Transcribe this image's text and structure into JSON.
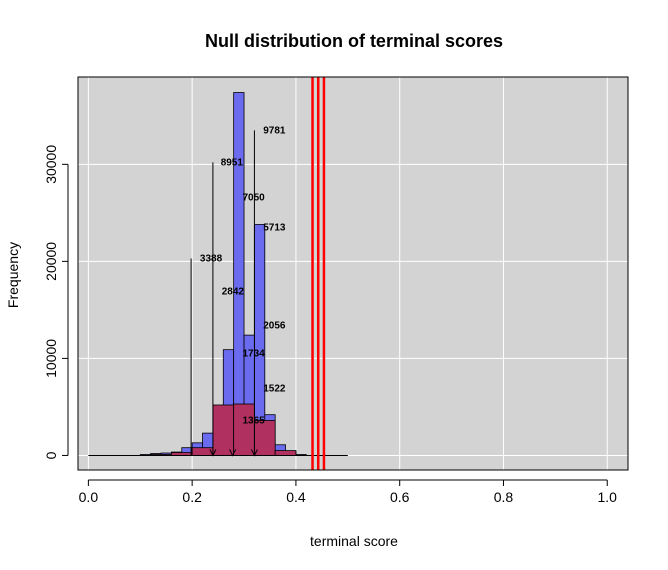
{
  "chart_data": {
    "type": "histogram",
    "title": "Null distribution of terminal scores",
    "xlabel": "terminal score",
    "ylabel": "Frequency",
    "xlim": [
      -0.02,
      1.04
    ],
    "ylim": [
      -1500,
      39000
    ],
    "x_ticks": [
      0.0,
      0.2,
      0.4,
      0.6,
      0.8,
      1.0
    ],
    "x_tick_labels": [
      "0.0",
      "0.2",
      "0.4",
      "0.6",
      "0.8",
      "1.0"
    ],
    "y_ticks": [
      0,
      10000,
      20000,
      30000
    ],
    "y_tick_labels": [
      "0",
      "10000",
      "20000",
      "30000"
    ],
    "grid": true,
    "panel_background": "#d3d3d3",
    "baseline": {
      "x": [
        0.0,
        0.5
      ],
      "y": 0
    },
    "series": [
      {
        "color": "#6b6bf0",
        "bin_width": 0.02,
        "bins": [
          {
            "x0": 0.1,
            "count": 100
          },
          {
            "x0": 0.12,
            "count": 200
          },
          {
            "x0": 0.14,
            "count": 250
          },
          {
            "x0": 0.16,
            "count": 350
          },
          {
            "x0": 0.18,
            "count": 800
          },
          {
            "x0": 0.2,
            "count": 1300
          },
          {
            "x0": 0.22,
            "count": 2300
          },
          {
            "x0": 0.24,
            "count": 4800
          },
          {
            "x0": 0.26,
            "count": 10900
          },
          {
            "x0": 0.28,
            "count": 37400
          },
          {
            "x0": 0.3,
            "count": 12400
          },
          {
            "x0": 0.32,
            "count": 23800
          },
          {
            "x0": 0.34,
            "count": 4200
          },
          {
            "x0": 0.36,
            "count": 1100
          },
          {
            "x0": 0.38,
            "count": 400
          },
          {
            "x0": 0.4,
            "count": 100
          }
        ]
      },
      {
        "color": "#b03060",
        "bin_width": 0.04,
        "bins": [
          {
            "x0": 0.12,
            "count": 100
          },
          {
            "x0": 0.16,
            "count": 300
          },
          {
            "x0": 0.2,
            "count": 800
          },
          {
            "x0": 0.24,
            "count": 5200
          },
          {
            "x0": 0.28,
            "count": 5300
          },
          {
            "x0": 0.32,
            "count": 3600
          },
          {
            "x0": 0.36,
            "count": 500
          }
        ]
      }
    ],
    "vertical_lines": {
      "color": "#ff0000",
      "x": [
        0.432,
        0.443,
        0.454
      ]
    },
    "callouts": [
      {
        "x": 0.198,
        "y_top": 20300,
        "label": "3388",
        "lx": 0.215,
        "ly": 20300
      },
      {
        "x": 0.24,
        "y_top": 30200,
        "label": "8951",
        "lx": 0.255,
        "ly": 30200
      },
      {
        "x": 0.32,
        "y_top": 33500,
        "label": "9781",
        "lx": 0.337,
        "ly": 33500
      }
    ],
    "annotations": [
      {
        "label": "7050",
        "x": 0.297,
        "y": 26600
      },
      {
        "label": "5713",
        "x": 0.337,
        "y": 23500
      },
      {
        "label": "2842",
        "x": 0.257,
        "y": 16900
      },
      {
        "label": "2056",
        "x": 0.337,
        "y": 13400
      },
      {
        "label": "1734",
        "x": 0.297,
        "y": 10500
      },
      {
        "label": "1522",
        "x": 0.337,
        "y": 6900
      },
      {
        "label": "1365",
        "x": 0.297,
        "y": 3600
      }
    ],
    "arrows_x": [
      0.24,
      0.278,
      0.32
    ]
  }
}
